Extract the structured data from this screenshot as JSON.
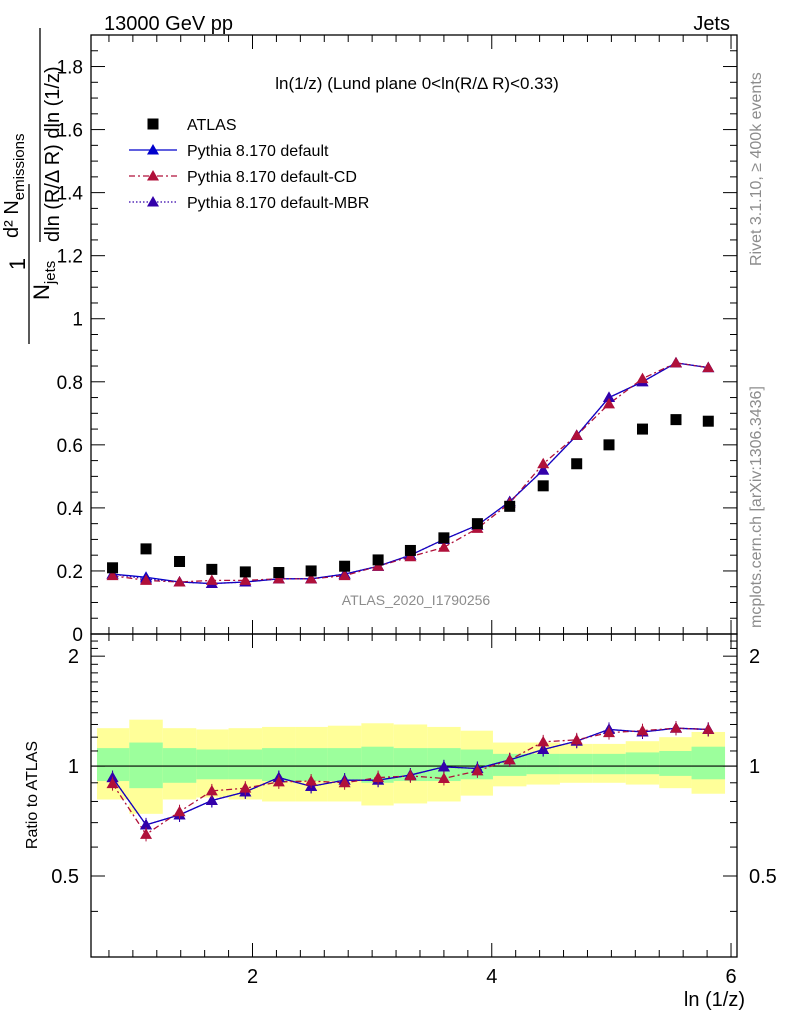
{
  "header": {
    "left": "13000 GeV pp",
    "right": "Jets"
  },
  "side_text": {
    "rivet": "Rivet 3.1.10, ≥ 400k events",
    "mcplots": "mcplots.cern.ch [arXiv:1306.3436]"
  },
  "watermark": "ATLAS_2020_I1790256",
  "colors": {
    "atlas": "#000000",
    "default": "#0000cc",
    "cd": "#b0103a",
    "mbr": "#3300aa",
    "band_inner": "#9cff9c",
    "band_outer": "#ffff99"
  },
  "chart_data": [
    {
      "type": "scatter",
      "title": "ln(1/z) (Lund plane 0<ln(R/Δ R)<0.33)",
      "ylabel": "1/N_jets dln(R/Δ R) dln(1/z) d² N_emissions",
      "ylabel_parts": {
        "frac_num": "1",
        "frac_den_main": "N",
        "frac_den_sub": "jets",
        "num_main": "d² N",
        "num_sub": "emissions",
        "den_main": "dln (R/Δ R) dln (1/z)"
      },
      "xlim": [
        0.65,
        6.05
      ],
      "ylim": [
        0,
        1.9
      ],
      "y_ticks": [
        "0",
        "0.2",
        "0.4",
        "0.6",
        "0.8",
        "1",
        "1.2",
        "1.4",
        "1.6",
        "1.8"
      ],
      "x": [
        0.83,
        1.11,
        1.39,
        1.66,
        1.94,
        2.22,
        2.49,
        2.77,
        3.05,
        3.32,
        3.6,
        3.88,
        4.15,
        4.43,
        4.71,
        4.98,
        5.26,
        5.54,
        5.81
      ],
      "legend": [
        "ATLAS",
        "Pythia 8.170 default",
        "Pythia 8.170 default-CD",
        "Pythia 8.170 default-MBR"
      ],
      "series": [
        {
          "name": "ATLAS",
          "values": [
            0.21,
            0.27,
            0.23,
            0.205,
            0.197,
            0.195,
            0.2,
            0.215,
            0.235,
            0.265,
            0.305,
            0.35,
            0.405,
            0.47,
            0.54,
            0.6,
            0.65,
            0.68,
            0.675
          ]
        },
        {
          "name": "Pythia 8.170 default",
          "values": [
            0.19,
            0.18,
            0.165,
            0.16,
            0.165,
            0.175,
            0.175,
            0.19,
            0.215,
            0.25,
            0.3,
            0.345,
            0.42,
            0.52,
            0.63,
            0.75,
            0.8,
            0.86,
            0.845
          ]
        },
        {
          "name": "Pythia 8.170 default-CD",
          "values": [
            0.185,
            0.17,
            0.165,
            0.17,
            0.17,
            0.175,
            0.175,
            0.185,
            0.215,
            0.245,
            0.275,
            0.335,
            0.415,
            0.54,
            0.63,
            0.73,
            0.81,
            0.86,
            0.845
          ]
        },
        {
          "name": "Pythia 8.170 default-MBR",
          "values": [
            0.19,
            0.175,
            0.165,
            0.16,
            0.165,
            0.175,
            0.175,
            0.19,
            0.215,
            0.25,
            0.3,
            0.345,
            0.42,
            0.52,
            0.63,
            0.75,
            0.8,
            0.86,
            0.845
          ]
        }
      ]
    },
    {
      "type": "line",
      "ylabel": "Ratio to ATLAS",
      "xlabel": "ln (1/z)",
      "xlim": [
        0.65,
        6.05
      ],
      "ylim": [
        0.3,
        2.3
      ],
      "x_ticks": [
        "2",
        "4",
        "6"
      ],
      "y_ticks": [
        "0.5",
        "1",
        "2"
      ],
      "bin_edges": [
        0.7,
        0.97,
        1.25,
        1.53,
        1.8,
        2.08,
        2.36,
        2.63,
        2.91,
        3.18,
        3.46,
        3.74,
        4.01,
        4.29,
        4.57,
        4.84,
        5.12,
        5.4,
        5.67,
        5.95
      ],
      "band_inner": [
        [
          0.91,
          1.12
        ],
        [
          0.87,
          1.16
        ],
        [
          0.9,
          1.12
        ],
        [
          0.92,
          1.11
        ],
        [
          0.92,
          1.11
        ],
        [
          0.91,
          1.12
        ],
        [
          0.91,
          1.12
        ],
        [
          0.91,
          1.12
        ],
        [
          0.9,
          1.13
        ],
        [
          0.91,
          1.12
        ],
        [
          0.91,
          1.12
        ],
        [
          0.92,
          1.11
        ],
        [
          0.94,
          1.08
        ],
        [
          0.95,
          1.08
        ],
        [
          0.95,
          1.08
        ],
        [
          0.95,
          1.08
        ],
        [
          0.95,
          1.09
        ],
        [
          0.94,
          1.1
        ],
        [
          0.92,
          1.13
        ]
      ],
      "band_outer": [
        [
          0.81,
          1.27
        ],
        [
          0.74,
          1.34
        ],
        [
          0.81,
          1.27
        ],
        [
          0.82,
          1.26
        ],
        [
          0.81,
          1.27
        ],
        [
          0.8,
          1.28
        ],
        [
          0.8,
          1.28
        ],
        [
          0.8,
          1.29
        ],
        [
          0.78,
          1.31
        ],
        [
          0.79,
          1.3
        ],
        [
          0.8,
          1.28
        ],
        [
          0.83,
          1.25
        ],
        [
          0.88,
          1.16
        ],
        [
          0.89,
          1.16
        ],
        [
          0.9,
          1.15
        ],
        [
          0.9,
          1.15
        ],
        [
          0.89,
          1.17
        ],
        [
          0.87,
          1.2
        ],
        [
          0.84,
          1.24
        ]
      ],
      "series": [
        {
          "name": "Pythia 8.170 default",
          "values": [
            0.93,
            0.69,
            0.735,
            0.805,
            0.85,
            0.93,
            0.88,
            0.915,
            0.915,
            0.945,
            0.995,
            0.985,
            1.04,
            1.11,
            1.17,
            1.26,
            1.24,
            1.27,
            1.26
          ]
        },
        {
          "name": "Pythia 8.170 default-CD",
          "values": [
            0.895,
            0.65,
            0.75,
            0.855,
            0.87,
            0.905,
            0.91,
            0.9,
            0.93,
            0.94,
            0.925,
            0.97,
            1.04,
            1.165,
            1.18,
            1.235,
            1.25,
            1.27,
            1.26
          ]
        },
        {
          "name": "Pythia 8.170 default-MBR",
          "values": [
            0.93,
            0.69,
            0.735,
            0.805,
            0.85,
            0.93,
            0.88,
            0.915,
            0.915,
            0.945,
            0.995,
            0.985,
            1.04,
            1.11,
            1.17,
            1.26,
            1.24,
            1.27,
            1.26
          ]
        }
      ]
    }
  ]
}
